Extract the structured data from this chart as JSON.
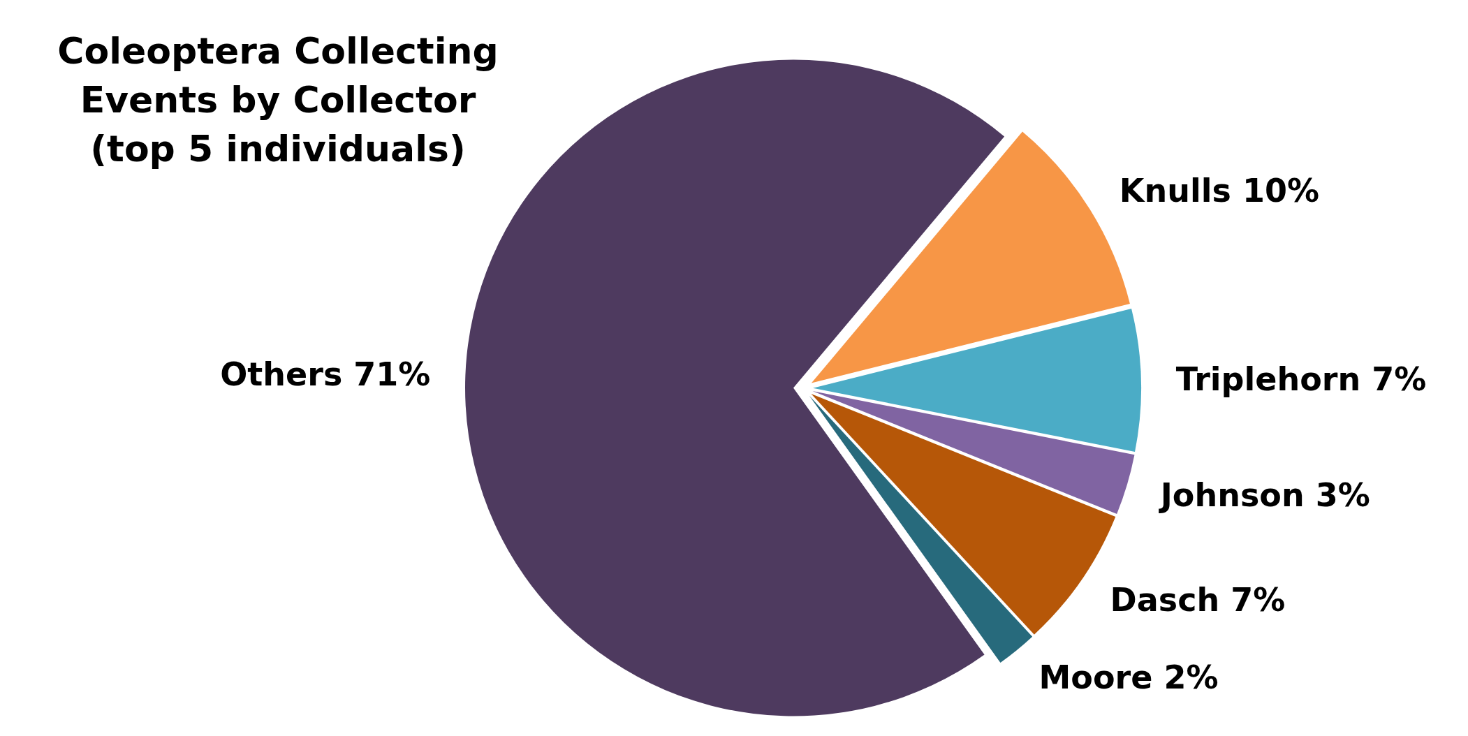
{
  "chart_data": {
    "type": "pie",
    "title": "Coleoptera Collecting Events by Collector (top 5 individuals)",
    "categories": [
      "Knulls",
      "Triplehorn",
      "Johnson",
      "Dasch",
      "Moore",
      "Others"
    ],
    "values": [
      10,
      7,
      3,
      7,
      2,
      71
    ],
    "value_labels": [
      "10%",
      "7%",
      "3%",
      "7%",
      "2%",
      "71%"
    ],
    "colors": [
      "#f79646",
      "#4bacc6",
      "#8064a2",
      "#b65708",
      "#276a7c",
      "#4e3a5f"
    ],
    "legend": false
  }
}
